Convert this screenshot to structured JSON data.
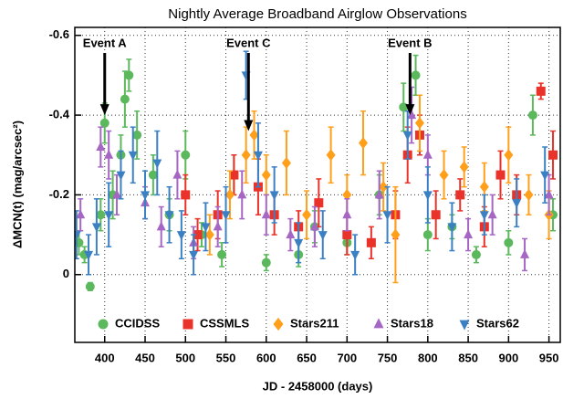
{
  "chart_data": {
    "type": "scatter",
    "title": "Nightly Average Broadband Airglow Observations",
    "xlabel": "JD - 2458000 (days)",
    "ylabel": "ΔMCN(t) (mag/arcsec²)",
    "xlim": [
      363,
      964
    ],
    "ylim": [
      0.17,
      -0.62
    ],
    "xticks": [
      400,
      450,
      500,
      550,
      600,
      650,
      700,
      750,
      800,
      850,
      900,
      950
    ],
    "yticks": [
      -0.6,
      -0.4,
      -0.2,
      0
    ],
    "grid": true,
    "legend": "bottom",
    "series": [
      {
        "name": "CCIDSS",
        "color": "#5cb85c",
        "marker": "circle",
        "x": [
          368,
          375,
          382,
          395,
          400,
          410,
          420,
          425,
          430,
          440,
          460,
          480,
          500,
          520,
          545,
          560,
          600,
          640,
          660,
          700,
          740,
          770,
          785,
          800,
          830,
          860,
          900,
          930,
          955
        ],
        "values": [
          -0.08,
          -0.05,
          0.03,
          -0.15,
          -0.38,
          -0.2,
          -0.3,
          -0.44,
          -0.5,
          -0.35,
          -0.25,
          -0.15,
          -0.3,
          -0.1,
          -0.05,
          -0.25,
          -0.03,
          -0.05,
          -0.12,
          -0.08,
          -0.2,
          -0.42,
          -0.5,
          -0.1,
          -0.12,
          -0.05,
          -0.08,
          -0.4,
          -0.15
        ],
        "errors": [
          0.03,
          0.02,
          0.01,
          0.04,
          0.05,
          0.06,
          0.05,
          0.07,
          0.04,
          0.06,
          0.05,
          0.04,
          0.06,
          0.03,
          0.03,
          0.05,
          0.02,
          0.03,
          0.04,
          0.03,
          0.05,
          0.06,
          0.05,
          0.04,
          0.03,
          0.02,
          0.03,
          0.05,
          0.04
        ]
      },
      {
        "name": "CSSMLS",
        "color": "#e8322a",
        "marker": "square",
        "x": [
          500,
          515,
          540,
          560,
          590,
          610,
          640,
          665,
          700,
          730,
          760,
          775,
          790,
          810,
          840,
          870,
          890,
          910,
          940,
          955
        ],
        "values": [
          -0.2,
          -0.1,
          -0.15,
          -0.25,
          -0.22,
          -0.15,
          -0.12,
          -0.18,
          -0.1,
          -0.08,
          -0.15,
          -0.3,
          -0.35,
          -0.15,
          -0.2,
          -0.12,
          -0.25,
          -0.2,
          -0.46,
          -0.3
        ],
        "errors": [
          0.05,
          0.04,
          0.06,
          0.05,
          0.07,
          0.05,
          0.04,
          0.06,
          0.05,
          0.04,
          0.06,
          0.07,
          0.05,
          0.06,
          0.04,
          0.05,
          0.06,
          0.05,
          0.02,
          0.06
        ]
      },
      {
        "name": "Stars211",
        "color": "#ff9f1a",
        "marker": "diamond",
        "x": [
          530,
          555,
          575,
          585,
          600,
          625,
          650,
          680,
          700,
          720,
          745,
          760,
          790,
          820,
          845,
          870,
          900,
          925,
          950
        ],
        "values": [
          -0.1,
          -0.2,
          -0.3,
          -0.35,
          -0.25,
          -0.28,
          -0.15,
          -0.3,
          -0.2,
          -0.33,
          -0.22,
          -0.1,
          -0.38,
          -0.25,
          -0.27,
          -0.22,
          -0.3,
          -0.2,
          -0.15
        ],
        "errors": [
          0.05,
          0.06,
          0.07,
          0.06,
          0.05,
          0.08,
          0.06,
          0.07,
          0.05,
          0.08,
          0.06,
          0.12,
          0.07,
          0.06,
          0.05,
          0.06,
          0.07,
          0.05,
          0.06
        ]
      },
      {
        "name": "Stars18",
        "color": "#a566c4",
        "marker": "triangle-up",
        "x": [
          370,
          395,
          405,
          415,
          450,
          470,
          490,
          510,
          540,
          570,
          600,
          630,
          660,
          700,
          740,
          780,
          800,
          850,
          880,
          920,
          950
        ],
        "values": [
          -0.15,
          -0.32,
          -0.3,
          -0.2,
          -0.18,
          -0.12,
          -0.25,
          -0.08,
          -0.12,
          -0.2,
          -0.15,
          -0.1,
          -0.12,
          -0.15,
          -0.2,
          -0.4,
          -0.3,
          -0.1,
          -0.15,
          -0.05,
          -0.2
        ],
        "errors": [
          0.04,
          0.05,
          0.06,
          0.05,
          0.04,
          0.05,
          0.06,
          0.04,
          0.05,
          0.06,
          0.05,
          0.04,
          0.05,
          0.04,
          0.06,
          0.07,
          0.05,
          0.04,
          0.05,
          0.04,
          0.05
        ]
      },
      {
        "name": "Stars62",
        "color": "#3c80c4",
        "marker": "triangle-down",
        "x": [
          365,
          380,
          390,
          405,
          420,
          435,
          450,
          465,
          480,
          495,
          510,
          525,
          550,
          575,
          590,
          610,
          640,
          670,
          710,
          750,
          775,
          800,
          830,
          870,
          910,
          945
        ],
        "values": [
          -0.1,
          -0.05,
          -0.12,
          -0.15,
          -0.25,
          -0.3,
          -0.2,
          -0.28,
          -0.15,
          -0.1,
          -0.05,
          -0.12,
          -0.15,
          -0.5,
          -0.3,
          -0.2,
          -0.08,
          -0.1,
          -0.05,
          -0.15,
          -0.35,
          -0.2,
          -0.12,
          -0.15,
          -0.18,
          -0.25
        ],
        "errors": [
          0.06,
          0.05,
          0.07,
          0.08,
          0.06,
          0.07,
          0.06,
          0.08,
          0.07,
          0.06,
          0.05,
          0.06,
          0.07,
          0.06,
          0.08,
          0.07,
          0.05,
          0.06,
          0.05,
          0.07,
          0.06,
          0.07,
          0.06,
          0.05,
          0.06,
          0.07
        ]
      }
    ],
    "annotations": [
      {
        "text": "Event A",
        "x": 400,
        "y": -0.4
      },
      {
        "text": "Event C",
        "x": 578,
        "y": -0.36
      },
      {
        "text": "Event B",
        "x": 778,
        "y": -0.4
      }
    ]
  }
}
